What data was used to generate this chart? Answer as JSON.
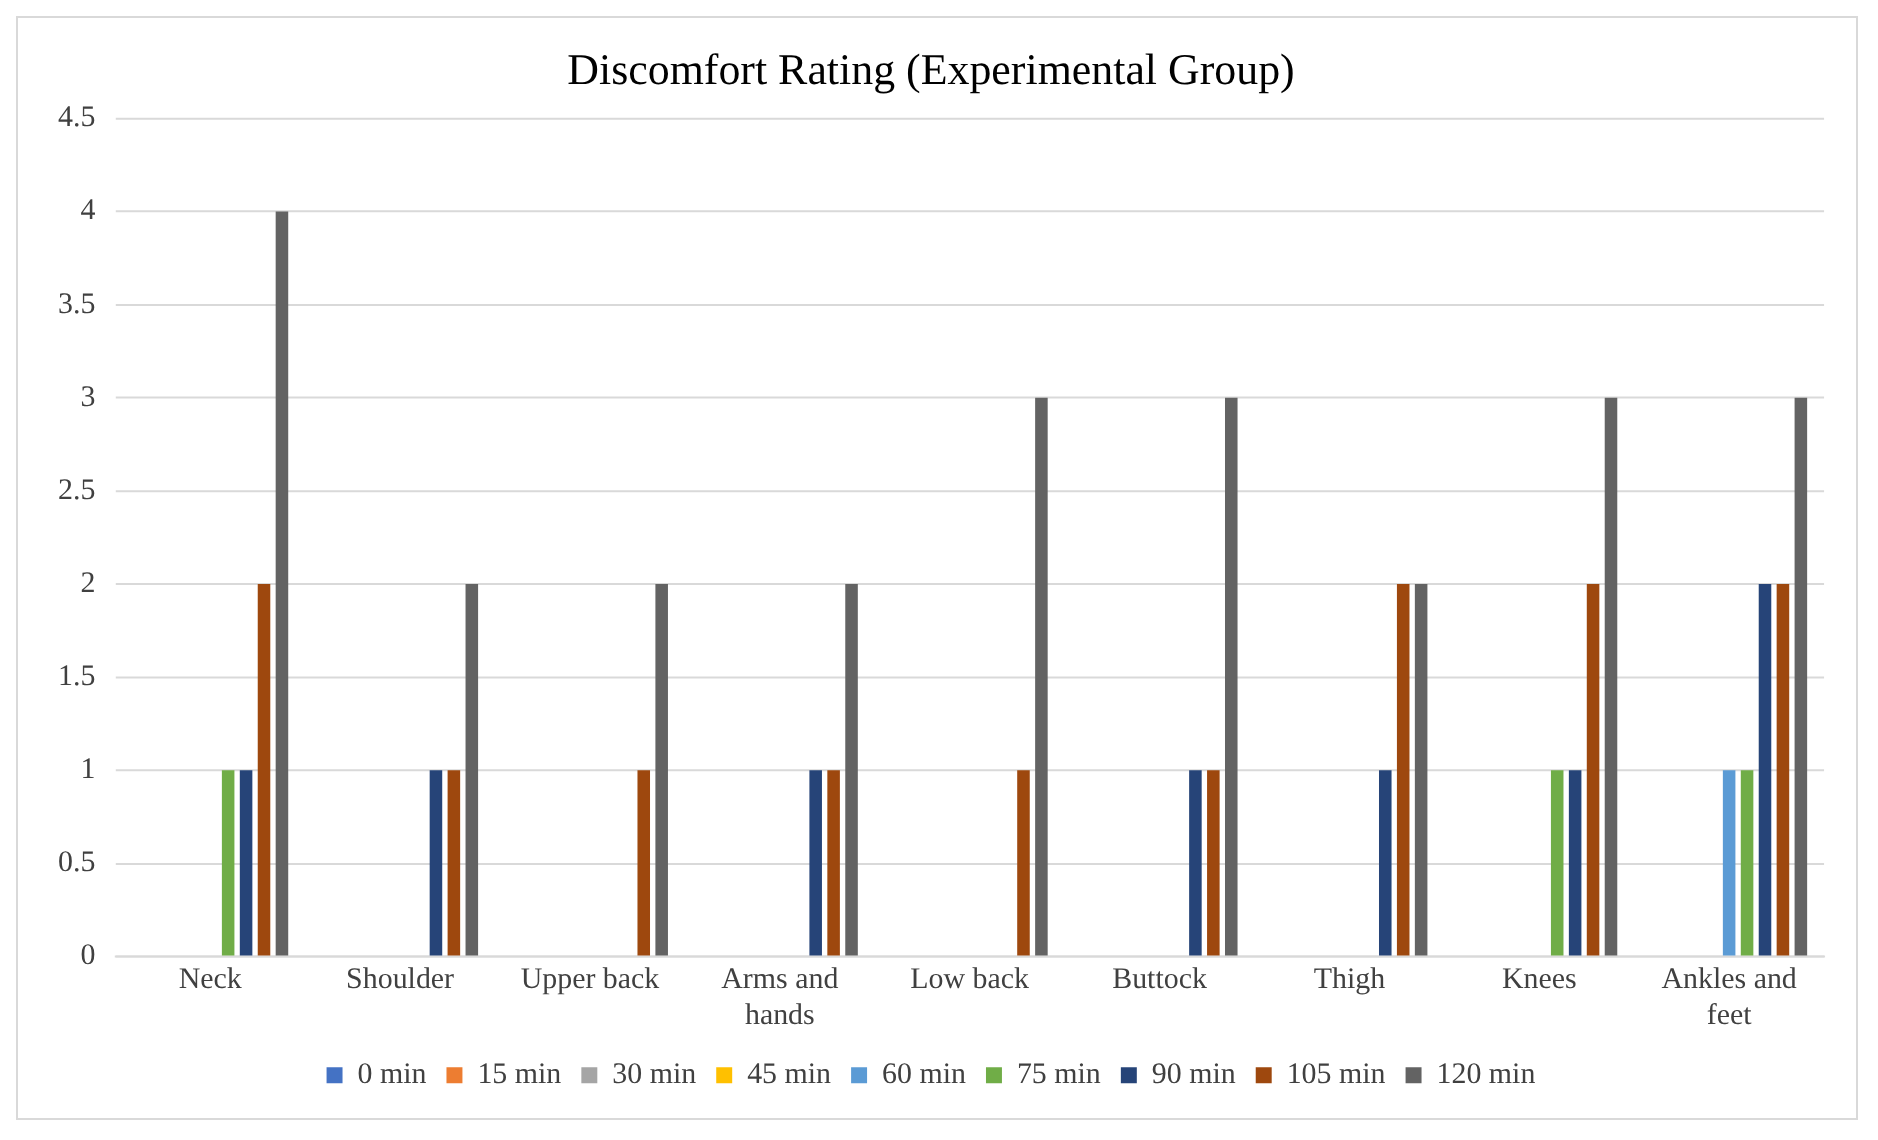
{
  "chart_data": {
    "type": "bar",
    "title": "Discomfort Rating (Experimental Group)",
    "categories": [
      "Neck",
      "Shoulder",
      "Upper back",
      "Arms and hands",
      "Low back",
      "Buttock",
      "Thigh",
      "Knees",
      "Ankles and feet"
    ],
    "series": [
      {
        "name": "0 min",
        "color": "#4472c4",
        "values": [
          0,
          0,
          0,
          0,
          0,
          0,
          0,
          0,
          0
        ]
      },
      {
        "name": "15 min",
        "color": "#ed7d31",
        "values": [
          0,
          0,
          0,
          0,
          0,
          0,
          0,
          0,
          0
        ]
      },
      {
        "name": "30 min",
        "color": "#a5a5a5",
        "values": [
          0,
          0,
          0,
          0,
          0,
          0,
          0,
          0,
          0
        ]
      },
      {
        "name": "45 min",
        "color": "#ffc000",
        "values": [
          0,
          0,
          0,
          0,
          0,
          0,
          0,
          0,
          0
        ]
      },
      {
        "name": "60 min",
        "color": "#5b9bd5",
        "values": [
          0,
          0,
          0,
          0,
          0,
          0,
          0,
          0,
          1
        ]
      },
      {
        "name": "75 min",
        "color": "#70ad47",
        "values": [
          1,
          0,
          0,
          0,
          0,
          0,
          0,
          1,
          1
        ]
      },
      {
        "name": "90 min",
        "color": "#264478",
        "values": [
          1,
          1,
          0,
          1,
          0,
          1,
          1,
          1,
          2
        ]
      },
      {
        "name": "105 min",
        "color": "#9e480e",
        "values": [
          2,
          1,
          1,
          1,
          1,
          1,
          2,
          2,
          2
        ]
      },
      {
        "name": "120 min",
        "color": "#636363",
        "values": [
          4,
          2,
          2,
          2,
          3,
          3,
          2,
          3,
          3
        ]
      }
    ],
    "ylim": [
      0,
      4.5
    ],
    "yticks": [
      0,
      0.5,
      1,
      1.5,
      2,
      2.5,
      3,
      3.5,
      4,
      4.5
    ],
    "grid": "y",
    "legend": "bottom"
  }
}
